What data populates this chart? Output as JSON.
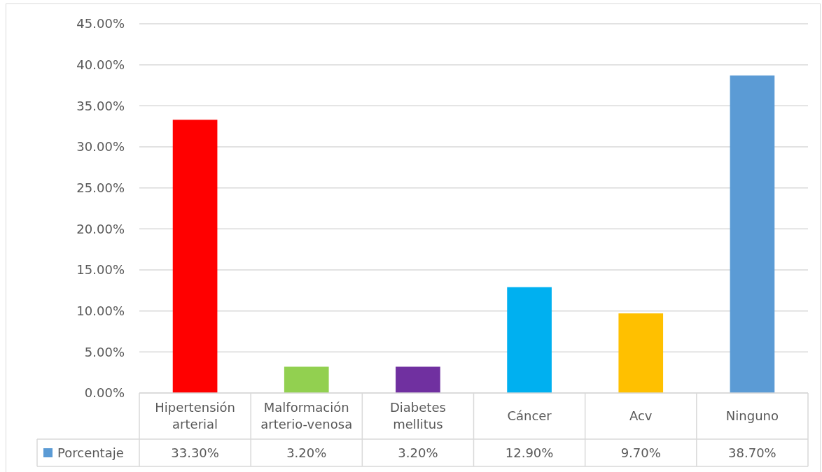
{
  "chart_data": {
    "type": "bar",
    "categories": [
      "Hipertensión arterial",
      "Malformación arterio-venosa",
      "Diabetes mellitus",
      "Cáncer",
      "Acv",
      "Ninguno"
    ],
    "series": [
      {
        "name": "Porcentaje",
        "color": "#5b9bd5",
        "colors": [
          "#ff0000",
          "#92d050",
          "#7030a0",
          "#00b0f0",
          "#ffc000",
          "#5b9bd5"
        ],
        "values": [
          33.3,
          3.2,
          3.2,
          12.9,
          9.7,
          38.7
        ],
        "value_labels": [
          "33.30%",
          "3.20%",
          "3.20%",
          "12.90%",
          "9.70%",
          "38.70%"
        ]
      }
    ],
    "ylim": [
      0,
      45
    ],
    "yticks": [
      {
        "value": 0,
        "label": "0.00%"
      },
      {
        "value": 5,
        "label": "5.00%"
      },
      {
        "value": 10,
        "label": "10.00%"
      },
      {
        "value": 15,
        "label": "15.00%"
      },
      {
        "value": 20,
        "label": "20.00%"
      },
      {
        "value": 25,
        "label": "25.00%"
      },
      {
        "value": 30,
        "label": "30.00%"
      },
      {
        "value": 35,
        "label": "35.00%"
      },
      {
        "value": 40,
        "label": "40.00%"
      },
      {
        "value": 45,
        "label": "45.00%"
      }
    ],
    "grid": "y",
    "legend": "bottom left"
  }
}
